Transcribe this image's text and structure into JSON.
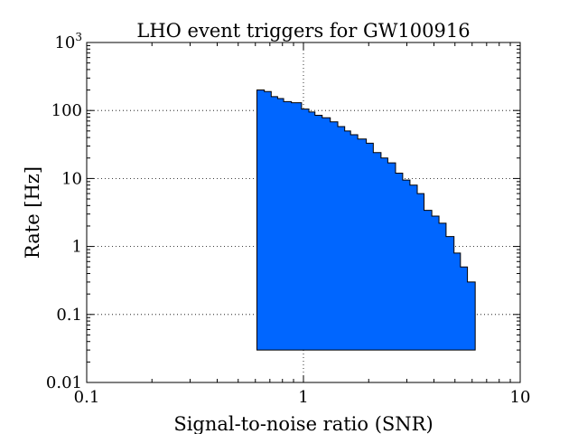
{
  "chart_data": {
    "type": "area",
    "title": "LHO event triggers for GW100916",
    "xlabel": "Signal-to-noise ratio (SNR)",
    "ylabel": "Rate [Hz]",
    "xscale": "log",
    "yscale": "log",
    "xlim": [
      0.1,
      10
    ],
    "ylim": [
      0.01,
      1000
    ],
    "grid": true,
    "legend": "none",
    "fill_color": "#0066ff",
    "baseline": 0.03,
    "x_ticks": [
      {
        "value": 0.1,
        "label": "0.1"
      },
      {
        "value": 1,
        "label": "1"
      },
      {
        "value": 10,
        "label": "10"
      }
    ],
    "y_ticks": [
      {
        "value": 0.01,
        "label": "0.01"
      },
      {
        "value": 0.1,
        "label": "0.1"
      },
      {
        "value": 1,
        "label": "1"
      },
      {
        "value": 10,
        "label": "10"
      },
      {
        "value": 100,
        "label": "100"
      },
      {
        "value": 1000,
        "label": "10",
        "sup": "3"
      }
    ],
    "bins": [
      {
        "x0": 0.61,
        "x1": 0.66,
        "y": 200
      },
      {
        "x0": 0.66,
        "x1": 0.71,
        "y": 190
      },
      {
        "x0": 0.71,
        "x1": 0.76,
        "y": 160
      },
      {
        "x0": 0.76,
        "x1": 0.81,
        "y": 150
      },
      {
        "x0": 0.81,
        "x1": 0.88,
        "y": 135
      },
      {
        "x0": 0.88,
        "x1": 0.98,
        "y": 130
      },
      {
        "x0": 0.98,
        "x1": 1.06,
        "y": 105
      },
      {
        "x0": 1.06,
        "x1": 1.13,
        "y": 95
      },
      {
        "x0": 1.13,
        "x1": 1.22,
        "y": 85
      },
      {
        "x0": 1.22,
        "x1": 1.33,
        "y": 78
      },
      {
        "x0": 1.33,
        "x1": 1.44,
        "y": 68
      },
      {
        "x0": 1.44,
        "x1": 1.55,
        "y": 58
      },
      {
        "x0": 1.55,
        "x1": 1.65,
        "y": 50
      },
      {
        "x0": 1.65,
        "x1": 1.78,
        "y": 44
      },
      {
        "x0": 1.78,
        "x1": 1.95,
        "y": 38
      },
      {
        "x0": 1.95,
        "x1": 2.1,
        "y": 33
      },
      {
        "x0": 2.1,
        "x1": 2.28,
        "y": 24
      },
      {
        "x0": 2.28,
        "x1": 2.45,
        "y": 20
      },
      {
        "x0": 2.45,
        "x1": 2.66,
        "y": 17
      },
      {
        "x0": 2.66,
        "x1": 2.87,
        "y": 12
      },
      {
        "x0": 2.87,
        "x1": 3.1,
        "y": 9.5
      },
      {
        "x0": 3.1,
        "x1": 3.35,
        "y": 8
      },
      {
        "x0": 3.35,
        "x1": 3.6,
        "y": 6
      },
      {
        "x0": 3.6,
        "x1": 3.91,
        "y": 3.4
      },
      {
        "x0": 3.91,
        "x1": 4.22,
        "y": 2.8
      },
      {
        "x0": 4.22,
        "x1": 4.55,
        "y": 2.2
      },
      {
        "x0": 4.55,
        "x1": 4.95,
        "y": 1.4
      },
      {
        "x0": 4.95,
        "x1": 5.3,
        "y": 0.8
      },
      {
        "x0": 5.3,
        "x1": 5.71,
        "y": 0.5
      },
      {
        "x0": 5.71,
        "x1": 6.2,
        "y": 0.3
      }
    ]
  }
}
